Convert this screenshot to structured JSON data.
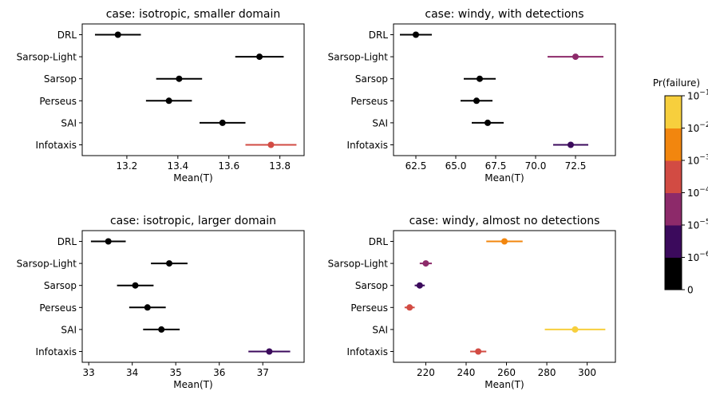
{
  "chart_data": [
    {
      "type": "errorbar",
      "title": "case: isotropic, smaller domain",
      "xlabel": "Mean(T)",
      "categories": [
        "DRL",
        "Sarsop-Light",
        "Sarsop",
        "Perseus",
        "SAI",
        "Infotaxis"
      ],
      "values": [
        13.165,
        13.72,
        13.405,
        13.365,
        13.575,
        13.765
      ],
      "errors": [
        0.09,
        0.095,
        0.09,
        0.09,
        0.09,
        0.1
      ],
      "pr_failure": [
        0,
        0,
        0,
        0,
        0,
        0.0003
      ],
      "xlim": [
        13.025,
        13.895
      ],
      "xticks": [
        13.2,
        13.4,
        13.6,
        13.8
      ],
      "xtick_labels": [
        "13.2",
        "13.4",
        "13.6",
        "13.8"
      ]
    },
    {
      "type": "errorbar",
      "title": "case: windy, with detections",
      "xlabel": "Mean(T)",
      "categories": [
        "DRL",
        "Sarsop-Light",
        "Sarsop",
        "Perseus",
        "SAI",
        "Infotaxis"
      ],
      "values": [
        62.5,
        72.5,
        66.5,
        66.3,
        67.0,
        72.2
      ],
      "errors": [
        1.0,
        1.75,
        1.0,
        1.0,
        1.0,
        1.1
      ],
      "pr_failure": [
        0,
        3e-05,
        0,
        0,
        0,
        3e-06
      ],
      "xlim": [
        61.1,
        75.0
      ],
      "xticks": [
        62.5,
        65.0,
        67.5,
        70.0,
        72.5
      ],
      "xtick_labels": [
        "62.5",
        "65.0",
        "67.5",
        "70.0",
        "72.5"
      ]
    },
    {
      "type": "errorbar",
      "title": "case: isotropic, larger domain",
      "xlabel": "Mean(T)",
      "categories": [
        "DRL",
        "Sarsop-Light",
        "Sarsop",
        "Perseus",
        "SAI",
        "Infotaxis"
      ],
      "values": [
        33.45,
        34.85,
        34.07,
        34.35,
        34.67,
        37.15
      ],
      "errors": [
        0.4,
        0.42,
        0.42,
        0.42,
        0.42,
        0.48
      ],
      "pr_failure": [
        0,
        0,
        0,
        0,
        0,
        3e-06
      ],
      "xlim": [
        32.85,
        37.95
      ],
      "xticks": [
        33,
        34,
        35,
        36,
        37
      ],
      "xtick_labels": [
        "33",
        "34",
        "35",
        "36",
        "37"
      ]
    },
    {
      "type": "errorbar",
      "title": "case: windy, almost no detections",
      "xlabel": "Mean(T)",
      "categories": [
        "DRL",
        "Sarsop-Light",
        "Sarsop",
        "Perseus",
        "SAI",
        "Infotaxis"
      ],
      "values": [
        259,
        220,
        217,
        212,
        294,
        246
      ],
      "errors": [
        9,
        3,
        2.5,
        2.5,
        15,
        4
      ],
      "pr_failure": [
        0.005,
        3e-05,
        3e-06,
        0.0003,
        0.05,
        0.0003
      ],
      "xlim": [
        204,
        314
      ],
      "xticks": [
        220,
        240,
        260,
        280,
        300
      ],
      "xtick_labels": [
        "220",
        "240",
        "260",
        "280",
        "300"
      ]
    }
  ],
  "colorbar": {
    "label": "Pr(failure)",
    "bands": [
      "#000000",
      "#3b0a5c",
      "#8d2a6a",
      "#d24b43",
      "#f2860e",
      "#f7cf3d"
    ],
    "tick_labels": [
      "0",
      "10",
      "10",
      "10",
      "10",
      "10",
      "10"
    ],
    "tick_exponents": [
      "",
      "−6",
      "−5",
      "−4",
      "−3",
      "−2",
      "−1"
    ]
  }
}
